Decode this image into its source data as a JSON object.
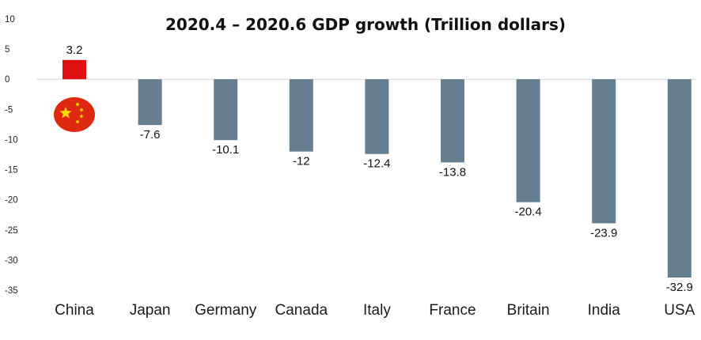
{
  "chart_data": {
    "type": "bar",
    "title": "2020.4 – 2020.6  GDP growth (Trillion dollars)",
    "xlabel": "",
    "ylabel": "",
    "categories": [
      "China",
      "Japan",
      "Germany",
      "Canada",
      "Italy",
      "France",
      "Britain",
      "India",
      "USA"
    ],
    "values": [
      3.2,
      -7.6,
      -10.1,
      -12,
      -12.4,
      -13.8,
      -20.4,
      -23.9,
      -32.9
    ],
    "value_labels": [
      "3.2",
      "-7.6",
      "-10.1",
      "-12",
      "-12.4",
      "-13.8",
      "-20.4",
      "-23.9",
      "-32.9"
    ],
    "ylim": [
      -35,
      10
    ],
    "yticks": [
      10,
      5,
      0,
      -5,
      -10,
      -15,
      -20,
      -25,
      -30,
      -35
    ],
    "ytick_labels": [
      "10",
      "5",
      "0",
      "-5",
      "-10",
      "-15",
      "-20",
      "-25",
      "-30",
      "-35"
    ],
    "grid": false,
    "legend": "none",
    "colors": {
      "positive_bar": "#dd1111",
      "negative_bar": "#657f91",
      "zero_line": "#d9d9d9",
      "flag_background": "#de2910",
      "flag_stars": "#ffde00"
    },
    "annotations": [
      {
        "type": "flag-icon",
        "icon": "china-flag-icon",
        "category": "China"
      }
    ]
  }
}
